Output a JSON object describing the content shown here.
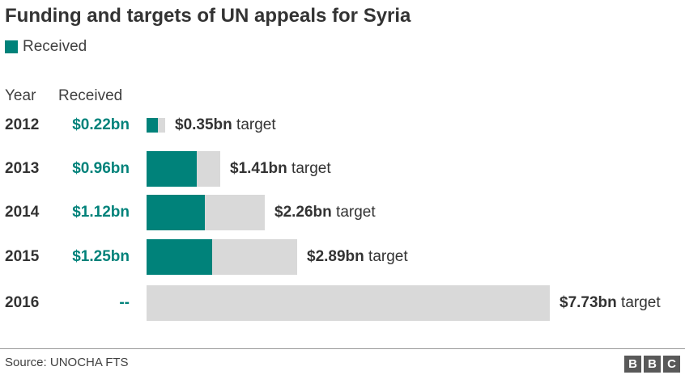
{
  "colors": {
    "received": "#00827a",
    "target": "#d9d9d9"
  },
  "chart_data": {
    "type": "bar",
    "title": "Funding and targets of UN appeals for Syria",
    "legend": [
      {
        "name": "Received",
        "color": "#00827a"
      }
    ],
    "column_headers": {
      "year": "Year",
      "received": "Received"
    },
    "categories": [
      "2012",
      "2013",
      "2014",
      "2015",
      "2016"
    ],
    "series": [
      {
        "name": "Received",
        "values": [
          0.22,
          0.96,
          1.12,
          1.25,
          null
        ]
      },
      {
        "name": "Target",
        "values": [
          0.35,
          1.41,
          2.26,
          2.89,
          7.73
        ]
      }
    ],
    "received_labels": [
      "$0.22bn",
      "$0.96bn",
      "$1.12bn",
      "$1.25bn",
      "--"
    ],
    "target_labels": [
      "$0.35bn",
      "$1.41bn",
      "$2.26bn",
      "$2.89bn",
      "$7.73bn"
    ],
    "target_suffix": "target",
    "unit": "bn USD",
    "xlim": [
      0,
      7.73
    ]
  },
  "footer": {
    "source": "Source: UNOCHA FTS",
    "logo_letters": [
      "B",
      "B",
      "C"
    ]
  }
}
